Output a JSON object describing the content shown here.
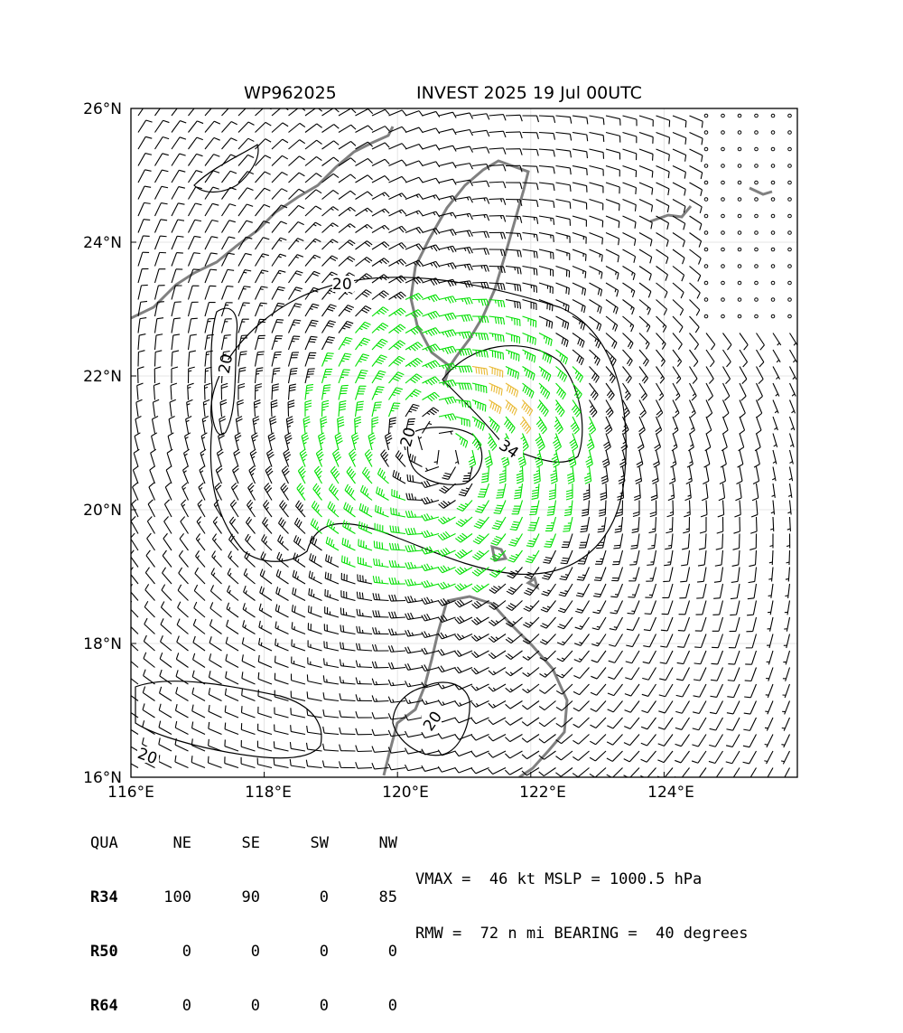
{
  "header": {
    "storm_id": "WP962025",
    "subtitle": "INVEST 2025 19 Jul 00UTC"
  },
  "map": {
    "lon_range": [
      116,
      126
    ],
    "lat_range": [
      16,
      26
    ],
    "lon_ticks": [
      "116°E",
      "118°E",
      "120°E",
      "122°E",
      "124°E"
    ],
    "lat_ticks": [
      "16°N",
      "18°N",
      "20°N",
      "22°N",
      "24°N",
      "26°N"
    ],
    "contour_labels": [
      "20",
      "20",
      "20",
      "34",
      "20",
      "20"
    ],
    "colors": {
      "calm_barb": "#000000",
      "r34_barb": "#00e000",
      "r50_barb": "#e8b830",
      "coastline": "#808080",
      "contour": "#000000"
    },
    "storm_center": {
      "lon": 120.6,
      "lat": 20.9
    }
  },
  "wind_radii": {
    "headers": [
      "QUA",
      "NE",
      "SE",
      "SW",
      "NW"
    ],
    "rows": [
      {
        "label": "R34",
        "values": [
          "100",
          "90",
          "0",
          "85"
        ]
      },
      {
        "label": "R50",
        "values": [
          "0",
          "0",
          "0",
          "0"
        ]
      },
      {
        "label": "R64",
        "values": [
          "0",
          "0",
          "0",
          "0"
        ]
      }
    ]
  },
  "stats": {
    "line1": "VMAX =  46 kt MSLP = 1000.5 hPa",
    "line2": "RMW =  72 n mi BEARING =  40 degrees"
  }
}
